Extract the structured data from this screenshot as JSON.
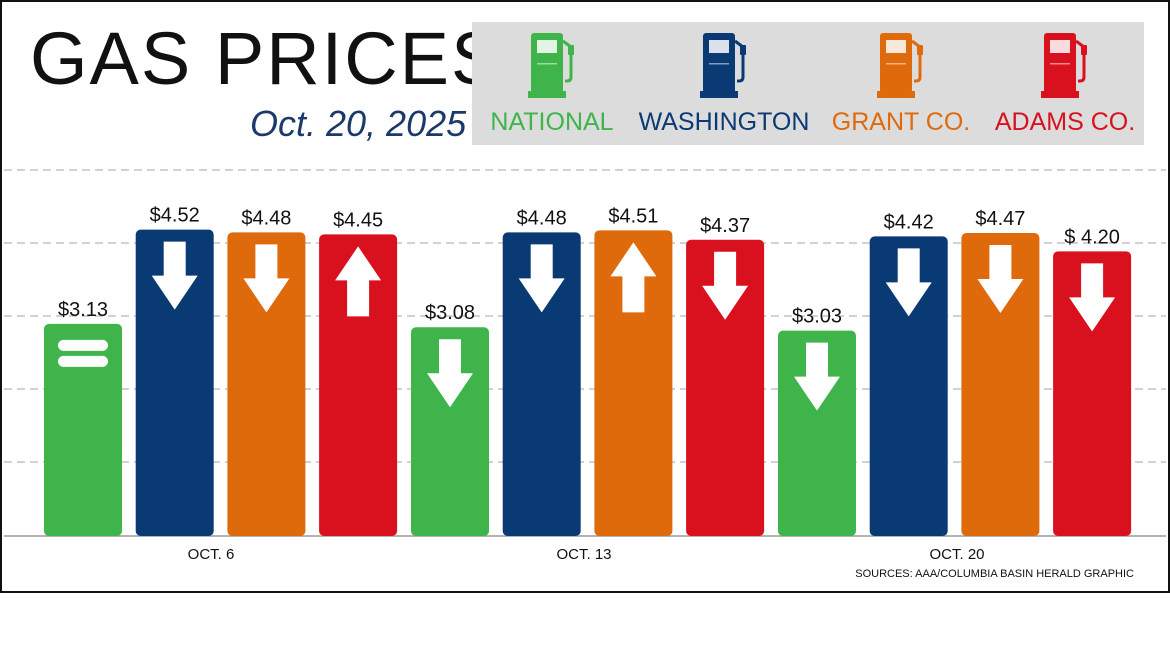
{
  "header": {
    "title": "GAS PRICES",
    "date": "Oct. 20, 2025"
  },
  "legend": [
    {
      "label": "NATIONAL",
      "color": "#3fb44a",
      "icon": "gas-pump-icon"
    },
    {
      "label": "WASHINGTON",
      "color": "#0a3a74",
      "icon": "gas-pump-icon"
    },
    {
      "label": "GRANT CO.",
      "color": "#df6a0b",
      "icon": "gas-pump-icon"
    },
    {
      "label": "ADAMS CO.",
      "color": "#d9101e",
      "icon": "gas-pump-icon"
    }
  ],
  "source": "SOURCES: AAA/COLUMBIA BASIN HERALD GRAPHIC",
  "chart_data": {
    "type": "bar",
    "categories": [
      "OCT. 6",
      "OCT. 13",
      "OCT. 20"
    ],
    "series": [
      {
        "name": "NATIONAL",
        "color": "#3fb44a",
        "values": [
          3.13,
          3.08,
          3.03
        ],
        "labels": [
          "$3.13",
          "$3.08",
          "$3.03"
        ],
        "trend": [
          "same",
          "down",
          "down"
        ]
      },
      {
        "name": "WASHINGTON",
        "color": "#0a3a74",
        "values": [
          4.52,
          4.48,
          4.42
        ],
        "labels": [
          "$4.52",
          "$4.48",
          "$4.42"
        ],
        "trend": [
          "down",
          "down",
          "down"
        ]
      },
      {
        "name": "GRANT CO.",
        "color": "#df6a0b",
        "values": [
          4.48,
          4.51,
          4.47
        ],
        "labels": [
          "$4.48",
          "$4.51",
          "$4.47"
        ],
        "trend": [
          "down",
          "up",
          "down"
        ]
      },
      {
        "name": "ADAMS CO.",
        "color": "#d9101e",
        "values": [
          4.45,
          4.37,
          4.2
        ],
        "labels": [
          "$4.45",
          "$4.37",
          "$ 4.20"
        ],
        "trend": [
          "up",
          "down",
          "down"
        ]
      }
    ],
    "grid": true,
    "legend": "top-right"
  }
}
